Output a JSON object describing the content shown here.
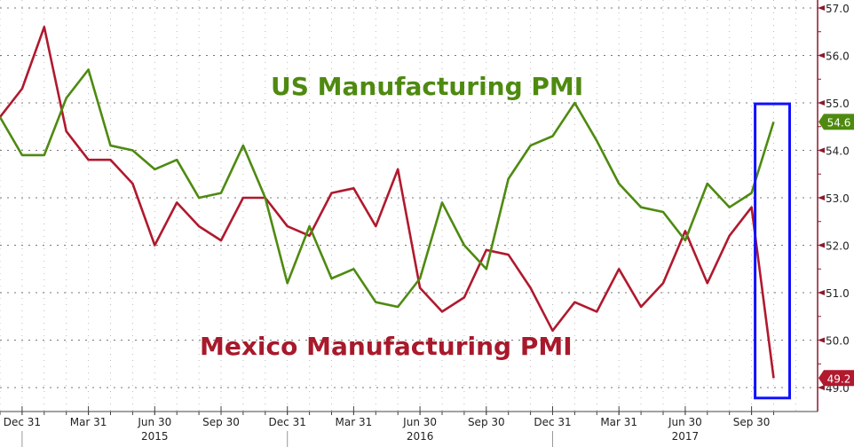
{
  "chart_data": {
    "type": "line",
    "title": "",
    "xlabel": "",
    "ylabel": "",
    "ylim": [
      49.0,
      57.0
    ],
    "grid": true,
    "y_ticks": [
      "57.0",
      "56.0",
      "55.0",
      "54.0",
      "53.0",
      "52.0",
      "51.0",
      "50.0",
      "49.0"
    ],
    "x_tick_labels": [
      {
        "label": "Dec 31",
        "index": 1
      },
      {
        "label": "Mar 31",
        "index": 4
      },
      {
        "label": "Jun 30",
        "index": 7
      },
      {
        "label": "Sep 30",
        "index": 10
      },
      {
        "label": "Dec 31",
        "index": 13
      },
      {
        "label": "Mar 31",
        "index": 16
      },
      {
        "label": "Jun 30",
        "index": 19
      },
      {
        "label": "Sep 30",
        "index": 22
      },
      {
        "label": "Dec 31",
        "index": 25
      },
      {
        "label": "Mar 31",
        "index": 28
      },
      {
        "label": "Jun 30",
        "index": 31
      },
      {
        "label": "Sep 30",
        "index": 34
      }
    ],
    "year_labels": [
      {
        "label": "2015",
        "index": 7
      },
      {
        "label": "2016",
        "index": 19
      },
      {
        "label": "2017",
        "index": 31
      }
    ],
    "series": [
      {
        "name": "US Manufacturing PMI",
        "color": "#4e8a10",
        "last_label": "54.6",
        "values": [
          54.7,
          53.9,
          53.9,
          55.1,
          55.7,
          54.1,
          54.0,
          53.6,
          53.8,
          53.0,
          53.1,
          54.1,
          53.0,
          51.2,
          52.4,
          51.3,
          51.5,
          50.8,
          50.7,
          51.3,
          52.9,
          52.0,
          51.5,
          53.4,
          54.1,
          54.3,
          55.0,
          54.2,
          53.3,
          52.8,
          52.7,
          52.1,
          53.3,
          52.8,
          53.1,
          54.6
        ]
      },
      {
        "name": "Mexico Manufacturing PMI",
        "color": "#b0192e",
        "last_label": "49.2",
        "values": [
          54.7,
          55.3,
          56.6,
          54.4,
          53.8,
          53.8,
          53.3,
          52.0,
          52.9,
          52.4,
          52.1,
          53.0,
          53.0,
          52.4,
          52.2,
          53.1,
          53.2,
          52.4,
          53.6,
          51.1,
          50.6,
          50.9,
          51.9,
          51.8,
          51.1,
          50.2,
          50.8,
          50.6,
          51.5,
          50.7,
          51.2,
          52.3,
          51.2,
          52.2,
          52.8,
          49.2
        ]
      }
    ],
    "annotations": [
      "US Manufacturing PMI",
      "Mexico Manufacturing PMI"
    ],
    "highlight_box": {
      "from_index": 34,
      "to_index": 35,
      "color": "#1010ff"
    }
  }
}
